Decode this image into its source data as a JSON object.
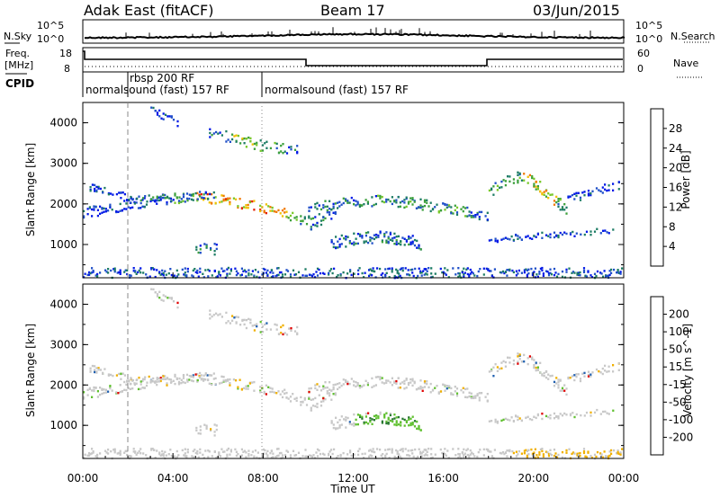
{
  "header": {
    "site": "Adak East (fitACF)",
    "beam": "Beam 17",
    "date": "03/Jun/2015"
  },
  "top_strip": {
    "left_label": "N.Sky",
    "right_label": "N.Search",
    "ticks": [
      "10^5",
      "10^0"
    ]
  },
  "freq_strip": {
    "left_label_line1": "Freq.",
    "left_label_line2": "[MHz]",
    "left_ticks": [
      "18",
      "8"
    ],
    "right_label": "Nave",
    "right_ticks": [
      "60",
      "0"
    ]
  },
  "cpid": {
    "label": "CPID",
    "modes": [
      "normalsound (fast) 157 RF",
      "rbsp 200 RF",
      "normalsound (fast) 157 RF"
    ]
  },
  "colors": {
    "power": [
      "#0018e6",
      "#2050c8",
      "#1c7c64",
      "#3ca03c",
      "#78c828",
      "#f0c000",
      "#f07800",
      "#e02000",
      "#e00000"
    ],
    "velocity": [
      "#2030c8",
      "#2060b0",
      "#287830",
      "#60c030",
      "#c8c8c8",
      "#c8c8c8",
      "#f0b000",
      "#f07000",
      "#e00000"
    ]
  },
  "chart_data": [
    {
      "type": "heatmap",
      "title": "Power",
      "ylabel": "Slant Range [km]",
      "yticks": [
        "1000",
        "2000",
        "3000",
        "4000"
      ],
      "ylim": [
        180,
        4500
      ],
      "xlim": [
        "00:00",
        "24:00"
      ],
      "colorbar_label": "Power [dB]",
      "colorbar_ticks": [
        "4",
        "8",
        "12",
        "16",
        "20",
        "24",
        "28"
      ],
      "colorbar_range": [
        0,
        30
      ]
    },
    {
      "type": "heatmap",
      "title": "Velocity",
      "ylabel": "Slant Range [km]",
      "yticks": [
        "1000",
        "2000",
        "3000",
        "4000"
      ],
      "ylim": [
        180,
        4500
      ],
      "xlabel": "Time UT",
      "xticks": [
        "00:00",
        "04:00",
        "08:00",
        "12:00",
        "16:00",
        "20:00",
        "00:00"
      ],
      "xlim": [
        "00:00",
        "24:00"
      ],
      "colorbar_label": "Velocity [m s^-1]",
      "colorbar_ticks": [
        "200",
        "100",
        "50",
        "15",
        "-15",
        "-50",
        "-100",
        "-200"
      ],
      "colorbar_range": [
        -200,
        200
      ]
    }
  ]
}
